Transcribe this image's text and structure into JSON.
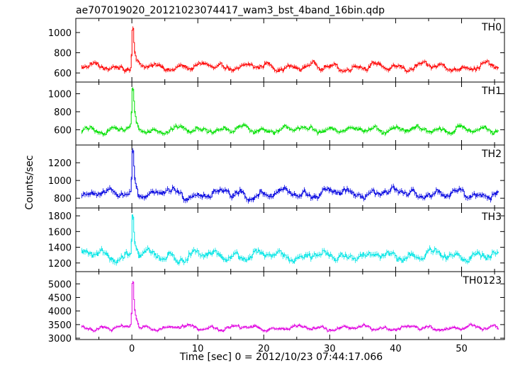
{
  "chart_data": {
    "type": "line",
    "title": "ae707019020_20121023074417_wam3_bst_4band_16bin.qdp",
    "xlabel": "Time [sec] 0 = 2012/10/23 07:44:17.066",
    "ylabel": "Counts/sec",
    "xlim": [
      -8.5,
      56.5
    ],
    "x_ticks": [
      0,
      10,
      20,
      30,
      40,
      50
    ],
    "x_tick_labels": [
      "0",
      "10",
      "20",
      "30",
      "40",
      "50"
    ],
    "grid": false,
    "panels": [
      {
        "label": "TH0",
        "color": "#ff0000",
        "ylim": [
          510,
          1140
        ],
        "y_ticks": [
          600,
          800,
          1000
        ],
        "y_tick_labels": [
          "600",
          "800",
          "1000"
        ],
        "series": {
          "x_start": -7.6,
          "x_end": 55.6,
          "baseline": 660,
          "amplitude": 55,
          "peak_x": 0.1,
          "peak_value": 1110
        }
      },
      {
        "label": "TH1",
        "color": "#00e000",
        "ylim": [
          430,
          1130
        ],
        "y_ticks": [
          600,
          800,
          1000
        ],
        "y_tick_labels": [
          "600",
          "800",
          "1000"
        ],
        "series": {
          "x_start": -7.6,
          "x_end": 55.6,
          "baseline": 600,
          "amplitude": 60,
          "peak_x": 0.1,
          "peak_value": 1110
        }
      },
      {
        "label": "TH2",
        "color": "#0000e0",
        "ylim": [
          690,
          1400
        ],
        "y_ticks": [
          800,
          1000,
          1200
        ],
        "y_tick_labels": [
          "800",
          "1000",
          "1200"
        ],
        "series": {
          "x_start": -7.6,
          "x_end": 55.6,
          "baseline": 850,
          "amplitude": 80,
          "peak_x": 0.1,
          "peak_value": 1390
        }
      },
      {
        "label": "TH3",
        "color": "#00e5e5",
        "ylim": [
          1090,
          1900
        ],
        "y_ticks": [
          1200,
          1400,
          1600,
          1800
        ],
        "y_tick_labels": [
          "1200",
          "1400",
          "1600",
          "1800"
        ],
        "series": {
          "x_start": -7.6,
          "x_end": 55.6,
          "baseline": 1290,
          "amplitude": 95,
          "peak_x": 0.1,
          "peak_value": 1880
        }
      },
      {
        "label": "TH0123",
        "color": "#e000e0",
        "ylim": [
          2950,
          5450
        ],
        "y_ticks": [
          3000,
          3500,
          4000,
          4500,
          5000
        ],
        "y_tick_labels": [
          "3000",
          "3500",
          "4000",
          "4500",
          "5000"
        ],
        "series": {
          "x_start": -7.6,
          "x_end": 55.6,
          "baseline": 3380,
          "amplitude": 140,
          "peak_x": 0.1,
          "peak_value": 5350
        }
      }
    ]
  }
}
